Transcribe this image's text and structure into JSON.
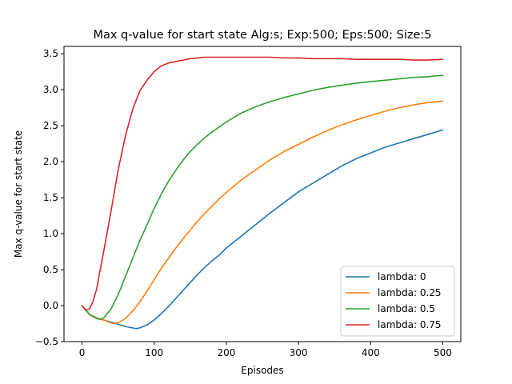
{
  "chart_data": {
    "type": "line",
    "title": "Max q-value for start state Alg:s; Exp:500; Eps:500; Size:5",
    "xlabel": "Episodes",
    "ylabel": "Max q-value for start state",
    "xlim": [
      -25,
      525
    ],
    "ylim": [
      -0.5,
      3.6
    ],
    "xticks": [
      0,
      100,
      200,
      300,
      400,
      500
    ],
    "yticks": [
      -0.5,
      0.0,
      0.5,
      1.0,
      1.5,
      2.0,
      2.5,
      3.0,
      3.5
    ],
    "xtick_labels": [
      "0",
      "100",
      "200",
      "300",
      "400",
      "500"
    ],
    "ytick_labels": [
      "−0.5",
      "0.0",
      "0.5",
      "1.0",
      "1.5",
      "2.0",
      "2.5",
      "3.0",
      "3.5"
    ],
    "grid": false,
    "legend_position": "lower-right",
    "series": [
      {
        "name": "lambda: 0",
        "color": "#1f77b4",
        "x": [
          0,
          10,
          20,
          30,
          40,
          50,
          60,
          70,
          75,
          80,
          90,
          100,
          110,
          120,
          130,
          140,
          150,
          160,
          170,
          180,
          190,
          200,
          220,
          240,
          260,
          280,
          300,
          320,
          340,
          360,
          380,
          400,
          420,
          440,
          460,
          480,
          500
        ],
        "y": [
          0.0,
          -0.12,
          -0.17,
          -0.2,
          -0.23,
          -0.26,
          -0.29,
          -0.31,
          -0.32,
          -0.31,
          -0.27,
          -0.2,
          -0.11,
          -0.01,
          0.1,
          0.21,
          0.32,
          0.43,
          0.53,
          0.62,
          0.7,
          0.8,
          0.96,
          1.12,
          1.28,
          1.43,
          1.58,
          1.7,
          1.82,
          1.94,
          2.04,
          2.12,
          2.2,
          2.26,
          2.32,
          2.38,
          2.44
        ]
      },
      {
        "name": "lambda: 0.25",
        "color": "#ff7f0e",
        "x": [
          0,
          10,
          20,
          30,
          40,
          45,
          50,
          60,
          70,
          80,
          90,
          100,
          110,
          120,
          130,
          140,
          150,
          160,
          170,
          180,
          190,
          200,
          220,
          240,
          260,
          280,
          300,
          320,
          340,
          360,
          380,
          400,
          420,
          440,
          460,
          480,
          500
        ],
        "y": [
          0.0,
          -0.12,
          -0.17,
          -0.2,
          -0.24,
          -0.25,
          -0.24,
          -0.18,
          -0.08,
          0.05,
          0.2,
          0.36,
          0.52,
          0.66,
          0.8,
          0.93,
          1.05,
          1.17,
          1.28,
          1.38,
          1.48,
          1.57,
          1.74,
          1.88,
          2.02,
          2.14,
          2.24,
          2.34,
          2.43,
          2.51,
          2.58,
          2.64,
          2.7,
          2.75,
          2.79,
          2.82,
          2.84
        ]
      },
      {
        "name": "lambda: 0.5",
        "color": "#2ca02c",
        "x": [
          0,
          10,
          20,
          25,
          30,
          40,
          50,
          60,
          70,
          80,
          90,
          100,
          110,
          120,
          130,
          140,
          150,
          160,
          170,
          180,
          190,
          200,
          220,
          240,
          260,
          280,
          300,
          320,
          340,
          360,
          380,
          400,
          420,
          440,
          460,
          480,
          500
        ],
        "y": [
          0.0,
          -0.12,
          -0.18,
          -0.19,
          -0.17,
          -0.05,
          0.15,
          0.4,
          0.65,
          0.9,
          1.12,
          1.35,
          1.55,
          1.73,
          1.88,
          2.02,
          2.14,
          2.24,
          2.33,
          2.41,
          2.48,
          2.55,
          2.67,
          2.76,
          2.83,
          2.89,
          2.94,
          2.99,
          3.03,
          3.06,
          3.09,
          3.11,
          3.13,
          3.15,
          3.17,
          3.18,
          3.2
        ]
      },
      {
        "name": "lambda: 0.75",
        "color": "#d62728",
        "x": [
          0,
          5,
          10,
          15,
          20,
          30,
          40,
          50,
          60,
          70,
          80,
          90,
          100,
          110,
          120,
          130,
          140,
          150,
          160,
          170,
          180,
          200,
          220,
          240,
          260,
          280,
          300,
          320,
          340,
          360,
          380,
          400,
          420,
          440,
          460,
          480,
          500
        ],
        "y": [
          0.0,
          -0.06,
          -0.05,
          0.05,
          0.22,
          0.75,
          1.3,
          1.88,
          2.35,
          2.72,
          2.98,
          3.13,
          3.25,
          3.33,
          3.37,
          3.39,
          3.41,
          3.43,
          3.44,
          3.45,
          3.45,
          3.45,
          3.45,
          3.45,
          3.45,
          3.44,
          3.44,
          3.43,
          3.43,
          3.43,
          3.42,
          3.42,
          3.42,
          3.42,
          3.41,
          3.41,
          3.42
        ]
      }
    ]
  }
}
